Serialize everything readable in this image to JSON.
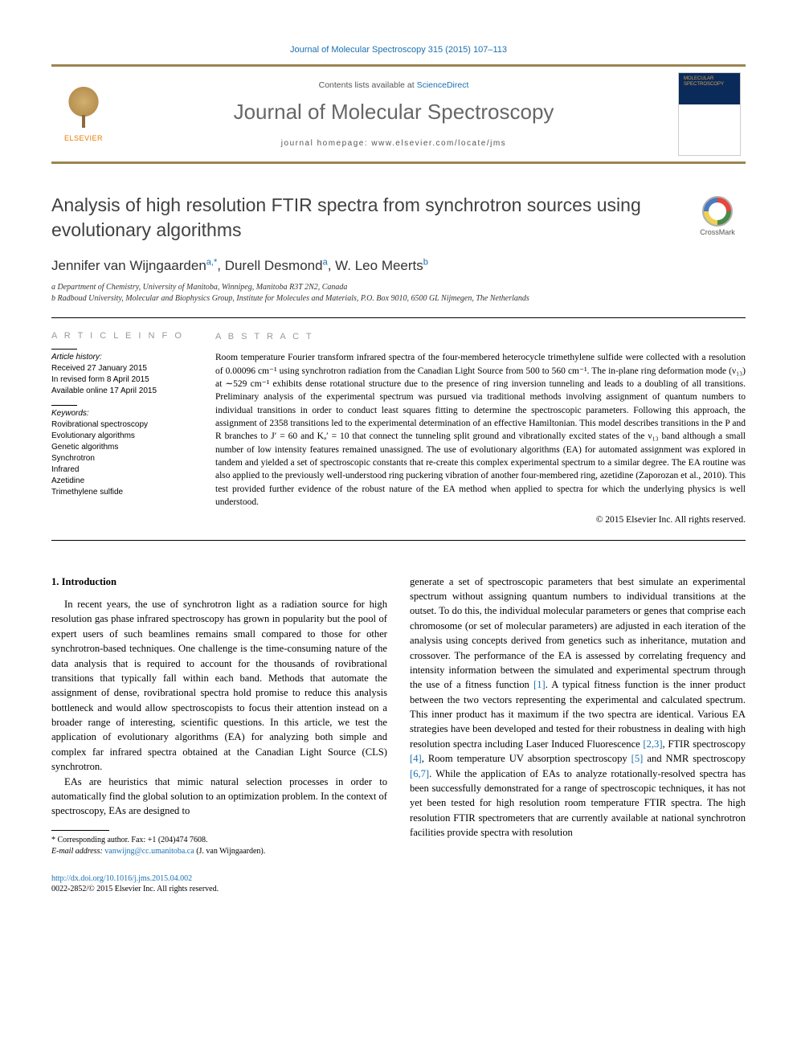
{
  "header_citation": "Journal of Molecular Spectroscopy 315 (2015) 107–113",
  "banner": {
    "publisher_label": "ELSEVIER",
    "contents_line_prefix": "Contents lists available at ",
    "contents_link": "ScienceDirect",
    "journal_name": "Journal of Molecular Spectroscopy",
    "homepage_label": "journal homepage: www.elsevier.com/locate/jms",
    "cover_text": "MOLECULAR SPECTROSCOPY"
  },
  "crossmark_label": "CrossMark",
  "title": "Analysis of high resolution FTIR spectra from synchrotron sources using evolutionary algorithms",
  "authors_html": "Jennifer van Wijngaarden",
  "author_list": [
    {
      "name": "Jennifer van Wijngaarden",
      "marks": "a,*"
    },
    {
      "name": "Durell Desmond",
      "marks": "a"
    },
    {
      "name": "W. Leo Meerts",
      "marks": "b"
    }
  ],
  "affiliations": [
    "a Department of Chemistry, University of Manitoba, Winnipeg, Manitoba R3T 2N2, Canada",
    "b Radboud University, Molecular and Biophysics Group, Institute for Molecules and Materials, P.O. Box 9010, 6500 GL Nijmegen, The Netherlands"
  ],
  "article_info": {
    "head": "A R T I C L E   I N F O",
    "history_label": "Article history:",
    "history": [
      "Received 27 January 2015",
      "In revised form 8 April 2015",
      "Available online 17 April 2015"
    ],
    "keywords_label": "Keywords:",
    "keywords": [
      "Rovibrational spectroscopy",
      "Evolutionary algorithms",
      "Genetic algorithms",
      "Synchrotron",
      "Infrared",
      "Azetidine",
      "Trimethylene sulfide"
    ]
  },
  "abstract": {
    "head": "A B S T R A C T",
    "body": "Room temperature Fourier transform infrared spectra of the four-membered heterocycle trimethylene sulfide were collected with a resolution of 0.00096 cm⁻¹ using synchrotron radiation from the Canadian Light Source from 500 to 560 cm⁻¹. The in-plane ring deformation mode (ν₁₃) at ∼529 cm⁻¹ exhibits dense rotational structure due to the presence of ring inversion tunneling and leads to a doubling of all transitions. Preliminary analysis of the experimental spectrum was pursued via traditional methods involving assignment of quantum numbers to individual transitions in order to conduct least squares fitting to determine the spectroscopic parameters. Following this approach, the assignment of 2358 transitions led to the experimental determination of an effective Hamiltonian. This model describes transitions in the P and R branches to J′ = 60 and Kₐ′ = 10 that connect the tunneling split ground and vibrationally excited states of the ν₁₃ band although a small number of low intensity features remained unassigned. The use of evolutionary algorithms (EA) for automated assignment was explored in tandem and yielded a set of spectroscopic constants that re-create this complex experimental spectrum to a similar degree. The EA routine was also applied to the previously well-understood ring puckering vibration of another four-membered ring, azetidine (Zaporozan et al., 2010). This test provided further evidence of the robust nature of the EA method when applied to spectra for which the underlying physics is well understood.",
    "copyright": "© 2015 Elsevier Inc. All rights reserved."
  },
  "body": {
    "section1_head": "1. Introduction",
    "col1_p1": "In recent years, the use of synchrotron light as a radiation source for high resolution gas phase infrared spectroscopy has grown in popularity but the pool of expert users of such beamlines remains small compared to those for other synchrotron-based techniques. One challenge is the time-consuming nature of the data analysis that is required to account for the thousands of rovibrational transitions that typically fall within each band. Methods that automate the assignment of dense, rovibrational spectra hold promise to reduce this analysis bottleneck and would allow spectroscopists to focus their attention instead on a broader range of interesting, scientific questions. In this article, we test the application of evolutionary algorithms (EA) for analyzing both simple and complex far infrared spectra obtained at the Canadian Light Source (CLS) synchrotron.",
    "col1_p2": "EAs are heuristics that mimic natural selection processes in order to automatically find the global solution to an optimization problem. In the context of spectroscopy, EAs are designed to",
    "col2_p1a": "generate a set of spectroscopic parameters that best simulate an experimental spectrum without assigning quantum numbers to individual transitions at the outset. To do this, the individual molecular parameters or genes that comprise each chromosome (or set of molecular parameters) are adjusted in each iteration of the analysis using concepts derived from genetics such as inheritance, mutation and crossover. The performance of the EA is assessed by correlating frequency and intensity information between the simulated and experimental spectrum through the use of a fitness function ",
    "ref1": "[1]",
    "col2_p1b": ". A typical fitness function is the inner product between the two vectors representing the experimental and calculated spectrum. This inner product has it maximum if the two spectra are identical. Various EA strategies have been developed and tested for their robustness in dealing with high resolution spectra including Laser Induced Fluorescence ",
    "ref23": "[2,3]",
    "col2_p1c": ", FTIR spectroscopy ",
    "ref4": "[4]",
    "col2_p1d": ", Room temperature UV absorption spectroscopy ",
    "ref5": "[5]",
    "col2_p1e": " and NMR spectroscopy ",
    "ref67": "[6,7]",
    "col2_p1f": ". While the application of EAs to analyze rotationally-resolved spectra has been successfully demonstrated for a range of spectroscopic techniques, it has not yet been tested for high resolution room temperature FTIR spectra. The high resolution FTIR spectrometers that are currently available at national synchrotron facilities provide spectra with resolution"
  },
  "footer": {
    "corr_label": "* Corresponding author. Fax: +1 (204)474 7608.",
    "email_label": "E-mail address: ",
    "email": "vanwijng@cc.umanitoba.ca",
    "email_suffix": " (J. van Wijngaarden).",
    "doi": "http://dx.doi.org/10.1016/j.jms.2015.04.002",
    "issn_line": "0022-2852/© 2015 Elsevier Inc. All rights reserved."
  },
  "colors": {
    "link": "#1a6fb0",
    "banner_border": "#9b8450",
    "gray_head": "#999999"
  }
}
